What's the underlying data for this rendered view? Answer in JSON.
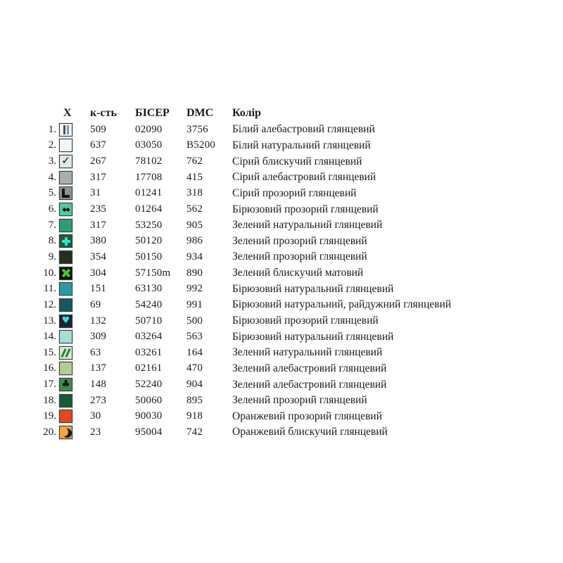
{
  "page": {
    "background": "#ffffff"
  },
  "table": {
    "headers": {
      "symbol": "X",
      "count": "к-сть",
      "bead": "БІСЕР",
      "dmc": "DMC",
      "color": "Колір"
    },
    "rows": [
      {
        "num": "1.",
        "symbol_type": "bars",
        "swatch_bg": "#eff3f3",
        "symbol_color": "#44525c",
        "symbol_color2": "#7e9cb0",
        "count": "509",
        "bead": "02090",
        "dmc": "3756",
        "color_name": "Білий алебастровий глянцевий"
      },
      {
        "num": "2.",
        "symbol_type": "empty",
        "swatch_bg": "#f2f6f7",
        "symbol_color": null,
        "count": "637",
        "bead": "03050",
        "dmc": "B5200",
        "color_name": "Білий натуральний глянцевий"
      },
      {
        "num": "3.",
        "symbol_type": "check",
        "swatch_bg": "#dfe8ea",
        "symbol_color": "#101010",
        "count": "267",
        "bead": "78102",
        "dmc": "762",
        "color_name": "Сірий блискучий глянцевий"
      },
      {
        "num": "4.",
        "symbol_type": "empty",
        "swatch_bg": "#a9adad",
        "symbol_color": null,
        "count": "317",
        "bead": "17708",
        "dmc": "415",
        "color_name": "Сірий алебастровий глянцевий"
      },
      {
        "num": "5.",
        "symbol_type": "L",
        "swatch_bg": "#8d9191",
        "symbol_color": "#141414",
        "count": "31",
        "bead": "01241",
        "dmc": "318",
        "color_name": "Сірий прозорий глянцевий"
      },
      {
        "num": "6.",
        "symbol_type": "diamonds",
        "swatch_bg": "#54c7a6",
        "symbol_color": "#061006",
        "count": "235",
        "bead": "01264",
        "dmc": "562",
        "color_name": "Бірюзовий прозорий глянцевий"
      },
      {
        "num": "7.",
        "symbol_type": "empty",
        "swatch_bg": "#2e9c6d",
        "symbol_color": null,
        "count": "317",
        "bead": "53250",
        "dmc": "905",
        "color_name": "Зелений натуральний глянцевий"
      },
      {
        "num": "8.",
        "symbol_type": "plus",
        "swatch_bg": "#1e5b3c",
        "symbol_color": "#33e6cf",
        "count": "380",
        "bead": "50120",
        "dmc": "986",
        "color_name": "Зелений прозорий  глянцевий"
      },
      {
        "num": "9.",
        "symbol_type": "empty",
        "swatch_bg": "#272e21",
        "symbol_color": null,
        "count": "354",
        "bead": "50150",
        "dmc": "934",
        "color_name": "Зелений прозорий глянцевий"
      },
      {
        "num": "10.",
        "symbol_type": "X",
        "swatch_bg": "#0b0f07",
        "symbol_color": "#3ecb28",
        "count": "304",
        "bead": "57150m",
        "dmc": "890",
        "color_name": "Зелений блискучий матовий"
      },
      {
        "num": "11.",
        "symbol_type": "empty",
        "swatch_bg": "#2b99a2",
        "symbol_color": null,
        "count": "151",
        "bead": "63130",
        "dmc": "992",
        "color_name": "Бірюзовий натуральний  глянцевий"
      },
      {
        "num": "12.",
        "symbol_type": "empty",
        "swatch_bg": "#155862",
        "symbol_color": null,
        "count": "69",
        "bead": "54240",
        "dmc": "991",
        "color_name": "Бірюзовий натуральний, райдужний глянцевий"
      },
      {
        "num": "13.",
        "symbol_type": "heart",
        "swatch_bg": "#1b2332",
        "symbol_color": "#2fe3d5",
        "count": "132",
        "bead": "50710",
        "dmc": "500",
        "color_name": "Бірюзовий прозорий глянцевий"
      },
      {
        "num": "14.",
        "symbol_type": "empty",
        "swatch_bg": "#a6ded2",
        "symbol_color": null,
        "count": "309",
        "bead": "03264",
        "dmc": "563",
        "color_name": "Бірюзовий натуральний глянцевий"
      },
      {
        "num": "15.",
        "symbol_type": "slashes",
        "swatch_bg": "#d6ebd0",
        "symbol_color": "#2e7d33",
        "count": "63",
        "bead": "03261",
        "dmc": "164",
        "color_name": "Зелений натуральний  глянцевий"
      },
      {
        "num": "16.",
        "symbol_type": "empty",
        "swatch_bg": "#b5cc92",
        "symbol_color": null,
        "count": "137",
        "bead": "02161",
        "dmc": "470",
        "color_name": "Зелений алебастровий  глянцевий"
      },
      {
        "num": "17.",
        "symbol_type": "clover",
        "swatch_bg": "#3e8b4d",
        "symbol_color": "#0a0f0a",
        "count": "148",
        "bead": "52240",
        "dmc": "904",
        "color_name": "Зелений алебастровий  глянцевий"
      },
      {
        "num": "18.",
        "symbol_type": "empty",
        "swatch_bg": "#185a35",
        "symbol_color": null,
        "count": "273",
        "bead": "50060",
        "dmc": "895",
        "color_name": "Зелений прозорий глянцевий"
      },
      {
        "num": "19.",
        "symbol_type": "empty",
        "swatch_bg": "#e1481d",
        "symbol_color": null,
        "count": "30",
        "bead": "90030",
        "dmc": "918",
        "color_name": "Оранжевий прозорий глянцевий"
      },
      {
        "num": "20.",
        "symbol_type": "crescent",
        "swatch_bg": "#f3a53b",
        "symbol_color": "#161616",
        "count": "23",
        "bead": "95004",
        "dmc": "742",
        "color_name": "Оранжевий блискучий глянцевий"
      }
    ]
  }
}
